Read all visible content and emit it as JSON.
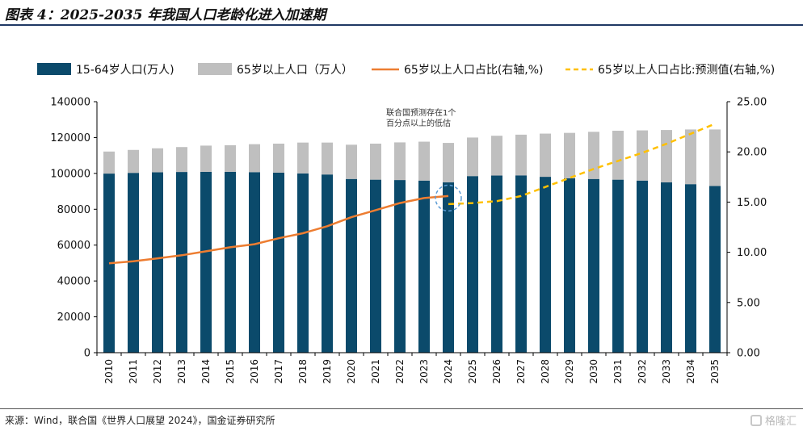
{
  "header": {
    "title": "图表 4：2025-2035 年我国人口老龄化进入加速期"
  },
  "footer": {
    "source": "来源：Wind，联合国《世界人口展望 2024》，国金证券研究所",
    "watermark": "格隆汇"
  },
  "colors": {
    "bar_15_64": "#0b4a6b",
    "bar_65": "#bfbfbf",
    "line_actual": "#ed7d31",
    "line_forecast": "#ffc000",
    "circle": "#5b9bd5",
    "title_rule": "#1f3864"
  },
  "chart_data": {
    "type": "bar",
    "categories": [
      "2010",
      "2011",
      "2012",
      "2013",
      "2014",
      "2015",
      "2016",
      "2017",
      "2018",
      "2019",
      "2020",
      "2021",
      "2022",
      "2023",
      "2024",
      "2025",
      "2026",
      "2027",
      "2028",
      "2029",
      "2030",
      "2031",
      "2032",
      "2033",
      "2034",
      "2035"
    ],
    "series": [
      {
        "name": "15-64岁人口(万人)",
        "kind": "stacked-bar",
        "axis": "left",
        "values": [
          99900,
          100300,
          100600,
          100800,
          100900,
          100900,
          100700,
          100400,
          100000,
          99400,
          96900,
          96500,
          96300,
          96000,
          95000,
          98500,
          98800,
          98900,
          98100,
          97300,
          96900,
          96500,
          96000,
          95000,
          94000,
          93000
        ]
      },
      {
        "name": "65岁以上人口（万人）",
        "kind": "stacked-bar",
        "axis": "left",
        "values": [
          12300,
          12800,
          13400,
          13900,
          14600,
          14800,
          15600,
          16200,
          17200,
          17800,
          19100,
          20100,
          21000,
          21700,
          22000,
          21500,
          22200,
          22700,
          24100,
          25300,
          26300,
          27300,
          28000,
          29200,
          30500,
          31500
        ]
      },
      {
        "name": "65岁以上人口占比(右轴,%)",
        "kind": "line",
        "axis": "right",
        "x": [
          "2010",
          "2011",
          "2012",
          "2013",
          "2014",
          "2015",
          "2016",
          "2017",
          "2018",
          "2019",
          "2020",
          "2021",
          "2022",
          "2023",
          "2024"
        ],
        "values": [
          8.9,
          9.1,
          9.4,
          9.7,
          10.1,
          10.5,
          10.8,
          11.4,
          11.9,
          12.6,
          13.5,
          14.2,
          14.9,
          15.4,
          15.6
        ]
      },
      {
        "name": "65岁以上人口占比:预测值(右轴,%)",
        "kind": "dashed-line",
        "axis": "right",
        "x": [
          "2024",
          "2025",
          "2026",
          "2027",
          "2028",
          "2029",
          "2030",
          "2031",
          "2032",
          "2033",
          "2034",
          "2035"
        ],
        "values": [
          14.8,
          14.9,
          15.1,
          15.6,
          16.5,
          17.4,
          18.3,
          19.1,
          19.9,
          20.8,
          21.8,
          22.8
        ]
      }
    ],
    "left_axis": {
      "ylim": [
        0,
        140000
      ],
      "ticks": [
        "0",
        "20000",
        "40000",
        "60000",
        "80000",
        "100000",
        "120000",
        "140000"
      ]
    },
    "right_axis": {
      "ylim": [
        0,
        25
      ],
      "ticks": [
        "0.00",
        "5.00",
        "10.00",
        "15.00",
        "20.00",
        "25.00"
      ]
    },
    "annotation": {
      "lines": [
        "联合国预测存在1个",
        "百分点以上的低估"
      ],
      "target": "2024"
    },
    "legend_position": "top",
    "grid": false
  }
}
